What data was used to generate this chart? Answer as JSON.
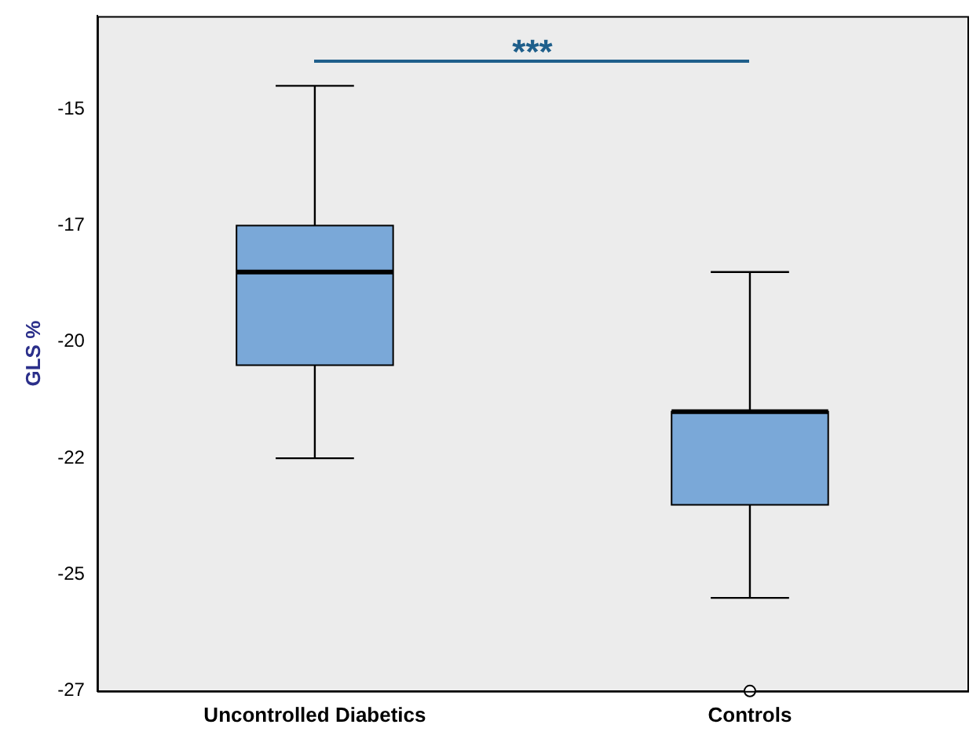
{
  "chart_data": {
    "type": "box",
    "ylabel": "GLS %",
    "categories": [
      "Uncontrolled Diabetics",
      "Controls"
    ],
    "boxes": [
      {
        "low": -22.5,
        "q1": -20.5,
        "median": -18.5,
        "q3": -17.5,
        "high": -14.5
      },
      {
        "low": -25.5,
        "q1": -23.5,
        "median": -21.5,
        "q3": -21.5,
        "high": -18.5,
        "outliers": [
          -27.5
        ]
      }
    ],
    "color": "#7aa8d8",
    "ylim": [
      -27.5,
      -13
    ],
    "yticks": [
      {
        "value": -15,
        "label": "-15"
      },
      {
        "value": -17.5,
        "label": "-17"
      },
      {
        "value": -20,
        "label": "-20"
      },
      {
        "value": -22.5,
        "label": "-22"
      },
      {
        "value": -25,
        "label": "-25"
      },
      {
        "value": -27.5,
        "label": "-27"
      }
    ],
    "annotations": [
      "***"
    ],
    "grid": false,
    "legend": false
  }
}
